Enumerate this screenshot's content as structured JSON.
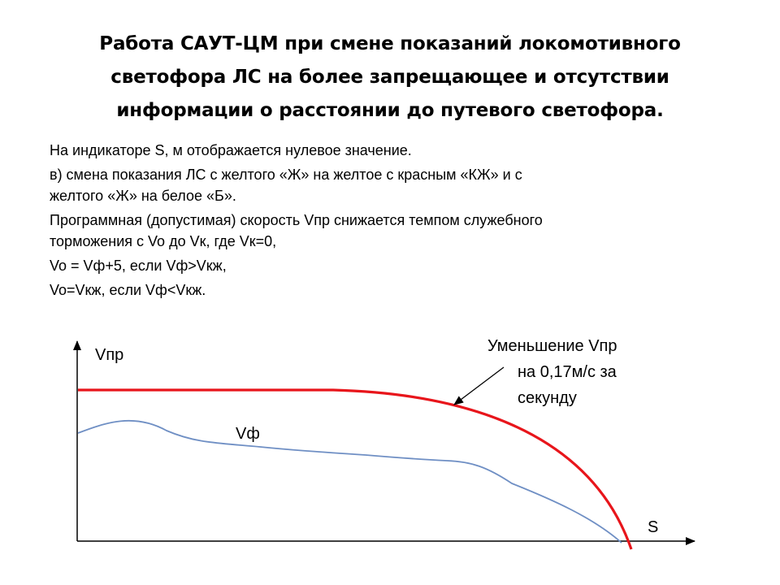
{
  "title_lines": [
    "Работа САУТ-ЦМ при смене показаний локомотивного",
    "светофора ЛС на более запрещающее и отсутствии",
    "информации о расстоянии до путевого светофора."
  ],
  "paragraphs": {
    "p1": "На индикаторе S, м отображается нулевое значение.",
    "p2_line1": "в) смена показания ЛС с желтого «Ж» на желтое с красным «КЖ» и с",
    "p2_line2": "желтого «Ж» на белое «Б».",
    "p3_line1": "Программная (допустимая) скорость Vпр снижается темпом служебного",
    "p3_line2": "торможения с Vo до Vк, где Vк=0,",
    "p4": "Vo = Vф+5, если Vф>Vкж,",
    "p5": "Vo=Vкж, если Vф<Vкж."
  },
  "diagram": {
    "y_axis_label": "Vпр",
    "x_axis_label": "S",
    "curve_vf_label": "Vф",
    "annotation_lines": [
      "Уменьшение Vпр",
      "на 0,17м/с за",
      "секунду"
    ],
    "colors": {
      "vpr_curve": "#e8151b",
      "vf_curve": "#6f8fc4",
      "axes": "#000000"
    }
  }
}
